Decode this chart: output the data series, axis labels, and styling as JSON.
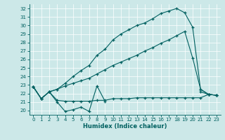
{
  "title": "",
  "xlabel": "Humidex (Indice chaleur)",
  "bg_color": "#cce8e8",
  "line_color": "#006060",
  "grid_color": "#ffffff",
  "xlim": [
    -0.5,
    23.5
  ],
  "ylim": [
    19.5,
    32.5
  ],
  "yticks": [
    20,
    21,
    22,
    23,
    24,
    25,
    26,
    27,
    28,
    29,
    30,
    31,
    32
  ],
  "xticks": [
    0,
    1,
    2,
    3,
    4,
    5,
    6,
    7,
    8,
    9,
    10,
    11,
    12,
    13,
    14,
    15,
    16,
    17,
    18,
    19,
    20,
    21,
    22,
    23
  ],
  "line1_x": [
    0,
    1,
    2,
    3,
    4,
    5,
    6,
    7,
    8,
    9,
    10,
    11,
    12,
    13,
    14,
    15,
    16,
    17,
    18,
    19,
    20,
    21,
    22,
    23
  ],
  "line1_y": [
    22.8,
    21.4,
    22.2,
    21.0,
    19.9,
    20.1,
    20.4,
    19.9,
    22.9,
    21.1,
    null,
    null,
    null,
    null,
    null,
    null,
    null,
    null,
    null,
    null,
    null,
    22.2,
    21.9,
    21.8
  ],
  "line2_x": [
    0,
    1,
    2,
    3,
    4,
    5,
    6,
    7,
    8,
    9,
    10,
    11,
    12,
    13,
    14,
    15,
    16,
    17,
    18,
    19,
    20,
    21,
    22,
    23
  ],
  "line2_y": [
    22.8,
    21.4,
    22.2,
    21.2,
    21.1,
    21.1,
    21.1,
    21.1,
    21.2,
    21.2,
    21.4,
    21.4,
    21.4,
    21.5,
    21.5,
    21.5,
    21.5,
    21.5,
    21.5,
    21.5,
    21.5,
    21.5,
    21.9,
    21.8
  ],
  "line3_x": [
    0,
    1,
    2,
    3,
    4,
    5,
    6,
    7,
    8,
    9,
    10,
    11,
    12,
    13,
    14,
    15,
    16,
    17,
    18,
    19,
    20,
    21,
    22,
    23
  ],
  "line3_y": [
    22.8,
    21.4,
    22.2,
    22.5,
    22.9,
    23.2,
    23.5,
    23.8,
    24.3,
    24.8,
    25.3,
    25.7,
    26.1,
    26.5,
    27.0,
    27.4,
    27.9,
    28.3,
    28.8,
    29.3,
    26.2,
    22.5,
    21.9,
    21.8
  ],
  "line4_x": [
    0,
    1,
    2,
    3,
    4,
    5,
    6,
    7,
    8,
    9,
    10,
    11,
    12,
    13,
    14,
    15,
    16,
    17,
    18,
    19,
    20,
    21,
    22,
    23
  ],
  "line4_y": [
    22.8,
    21.4,
    22.2,
    22.5,
    23.2,
    24.0,
    24.7,
    25.3,
    26.5,
    27.2,
    28.3,
    29.0,
    29.5,
    30.0,
    30.3,
    30.8,
    31.4,
    31.7,
    32.0,
    31.5,
    29.8,
    22.5,
    21.9,
    21.8
  ]
}
